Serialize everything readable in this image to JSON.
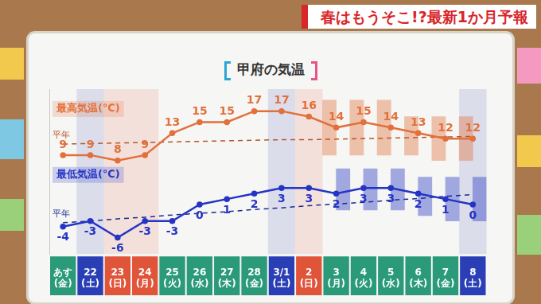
{
  "header": "春はもうそこ!?最新1か月予報",
  "chart_data": {
    "type": "line",
    "title": "甲府の気温",
    "categories": [
      "あす(金)",
      "22(土)",
      "23(日)",
      "24(月)",
      "25(火)",
      "26(水)",
      "27(木)",
      "28(金)",
      "3/1(土)",
      "2(日)",
      "3(月)",
      "4(火)",
      "5(水)",
      "6(木)",
      "7(金)",
      "8(土)"
    ],
    "colors": [
      "#2a9a78",
      "#2a3fb5",
      "#e0553a",
      "#e0553a",
      "#2a9a78",
      "#2a9a78",
      "#2a9a78",
      "#2a9a78",
      "#2a3fb5",
      "#e0553a",
      "#2a9a78",
      "#2a9a78",
      "#2a9a78",
      "#2a9a78",
      "#2a9a78",
      "#2a3fb5"
    ],
    "ylim": [
      -9,
      21
    ],
    "tick_labels": "x",
    "grid": false,
    "series": [
      {
        "name": "最高気温(℃)",
        "color": "#e2703a",
        "marker": "circle",
        "data_labels": true,
        "values": [
          9,
          9,
          8,
          9,
          13,
          15,
          15,
          17,
          17,
          16,
          14,
          15,
          14,
          13,
          12,
          12
        ],
        "range_low": [
          null,
          null,
          null,
          null,
          null,
          null,
          null,
          null,
          null,
          null,
          9,
          9,
          9,
          9,
          8,
          8
        ],
        "range_high": [
          null,
          null,
          null,
          null,
          null,
          null,
          null,
          null,
          null,
          null,
          19,
          19,
          19,
          16,
          16,
          16
        ]
      },
      {
        "name": "平年",
        "color": "#b8552a",
        "line_style": "dashed",
        "values": [
          11.0,
          11.1,
          11.2,
          11.3,
          11.4,
          11.5,
          11.6,
          11.7,
          11.8,
          11.8,
          11.9,
          12.0,
          12.1,
          12.2,
          12.3,
          12.4
        ]
      },
      {
        "name": "最低気温(℃)",
        "color": "#2434c4",
        "marker": "circle",
        "data_labels": true,
        "values": [
          -4,
          -3,
          -6,
          -3,
          -3,
          0,
          1,
          2,
          3,
          3,
          2,
          3,
          3,
          2,
          1,
          0
        ],
        "range_low": [
          null,
          null,
          null,
          null,
          null,
          null,
          null,
          null,
          null,
          null,
          -1,
          -1,
          -1,
          -2,
          -3,
          -3
        ],
        "range_high": [
          null,
          null,
          null,
          null,
          null,
          null,
          null,
          null,
          null,
          null,
          6.5,
          6.5,
          6.5,
          5,
          5,
          5
        ]
      },
      {
        "name": "平年",
        "color": "#1a2a90",
        "line_style": "dashed",
        "values": [
          -3.3,
          -3.0,
          -2.6,
          -2.3,
          -1.9,
          -1.6,
          -1.3,
          -0.9,
          -0.6,
          -0.2,
          0.1,
          0.4,
          0.8,
          1.1,
          1.5,
          1.8
        ]
      }
    ]
  }
}
